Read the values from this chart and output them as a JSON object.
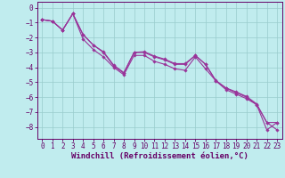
{
  "xlabel": "Windchill (Refroidissement éolien,°C)",
  "bg_color": "#c0ecee",
  "line_color": "#993399",
  "grid_color": "#99cccc",
  "axis_color": "#660066",
  "text_color": "#660066",
  "xlim": [
    -0.5,
    23.5
  ],
  "ylim": [
    -8.8,
    0.4
  ],
  "xticks": [
    0,
    1,
    2,
    3,
    4,
    5,
    6,
    7,
    8,
    9,
    10,
    11,
    12,
    13,
    14,
    15,
    16,
    17,
    18,
    19,
    20,
    21,
    22,
    23
  ],
  "yticks": [
    0,
    -1,
    -2,
    -3,
    -4,
    -5,
    -6,
    -7,
    -8
  ],
  "series1_x": [
    0,
    1,
    2,
    3,
    4,
    5,
    6,
    7,
    8,
    9,
    10,
    11,
    12,
    13,
    14,
    15,
    16,
    17,
    18,
    19,
    20,
    21,
    22,
    23
  ],
  "series1_y": [
    -0.8,
    -0.9,
    -1.5,
    -0.4,
    -1.8,
    -2.5,
    -3.0,
    -3.9,
    -4.4,
    -3.0,
    -3.0,
    -3.3,
    -3.5,
    -3.8,
    -3.8,
    -3.2,
    -3.8,
    -4.9,
    -5.4,
    -5.7,
    -6.0,
    -6.5,
    -7.7,
    -8.2
  ],
  "series2_x": [
    0,
    1,
    2,
    3,
    4,
    5,
    6,
    7,
    8,
    9,
    10,
    11,
    12,
    13,
    14,
    15,
    16,
    17,
    18,
    19,
    20,
    21,
    22,
    23
  ],
  "series2_y": [
    -0.8,
    -0.9,
    -1.5,
    -0.4,
    -2.1,
    -2.8,
    -3.3,
    -4.0,
    -4.5,
    -3.2,
    -3.2,
    -3.6,
    -3.8,
    -4.1,
    -4.2,
    -3.3,
    -4.1,
    -4.9,
    -5.5,
    -5.8,
    -6.1,
    -6.5,
    -8.2,
    -7.7
  ],
  "series3_x": [
    0,
    1,
    2,
    3,
    4,
    5,
    6,
    7,
    8,
    9,
    10,
    11,
    12,
    13,
    14,
    15,
    16,
    17,
    18,
    19,
    20,
    21,
    22,
    23
  ],
  "series3_y": [
    -0.8,
    -0.9,
    -1.5,
    -0.4,
    -1.8,
    -2.5,
    -2.95,
    -3.85,
    -4.35,
    -3.0,
    -2.95,
    -3.25,
    -3.45,
    -3.75,
    -3.75,
    -3.2,
    -3.8,
    -4.88,
    -5.38,
    -5.65,
    -5.95,
    -6.45,
    -7.7,
    -7.7
  ],
  "tick_fontsize": 5.5,
  "label_fontsize": 6.5,
  "marker": "D",
  "marker_size": 1.8,
  "line_width": 0.8
}
